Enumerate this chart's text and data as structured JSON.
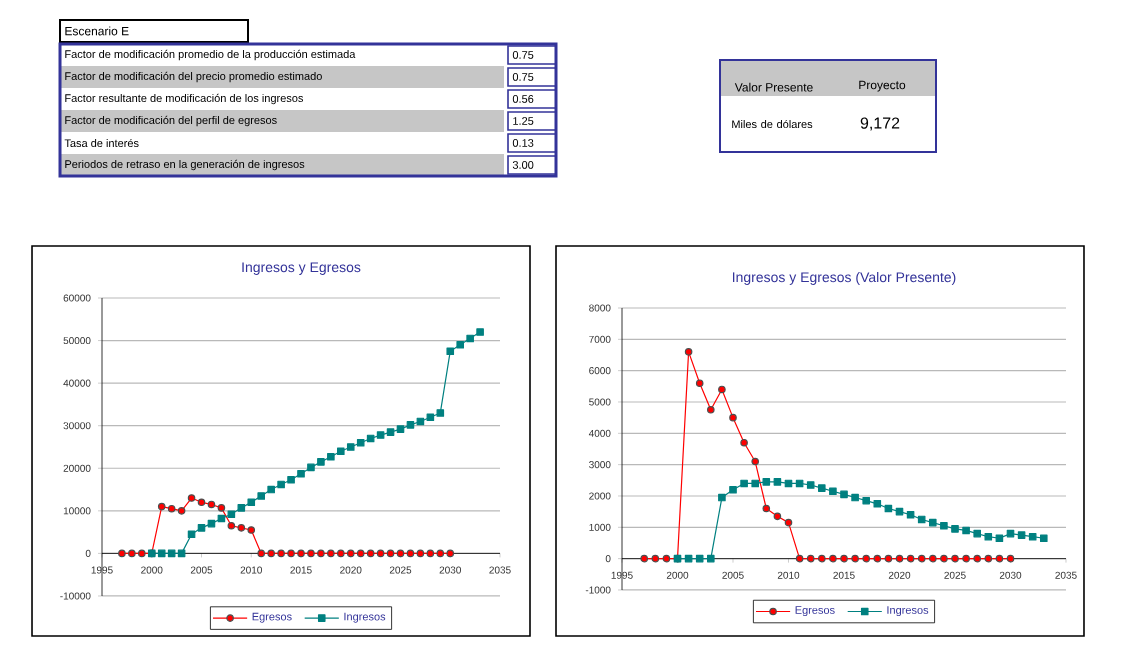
{
  "chart_data": [
    {
      "type": "other",
      "title": "Escenario E",
      "categories": [
        "Factor de modificación promedio de la producción estimada",
        "Factor de modificación del precio promedio estimado",
        "Factor resultante de modificación de los ingresos",
        "Factor de modificación del perfil de egresos",
        "Tasa de interés",
        "Periodos de retraso en la generación de ingresos"
      ],
      "value_labels": [
        "0.75",
        "0.75",
        "0.56",
        "1.25",
        "0.13",
        "3.00"
      ]
    },
    {
      "type": "other",
      "annotations": [
        "Valor Presente",
        "Proyecto"
      ],
      "categories": [
        "Miles de dólares"
      ],
      "value_labels": [
        "9,172"
      ]
    },
    {
      "type": "line",
      "title": "Ingresos y Egresos",
      "xlim": [
        1995,
        2035
      ],
      "xticks": [
        1995,
        2000,
        2005,
        2010,
        2015,
        2020,
        2025,
        2030,
        2035
      ],
      "ylim": [
        -10000,
        60000
      ],
      "yticks": [
        -10000,
        0,
        10000,
        20000,
        30000,
        40000,
        50000,
        60000
      ],
      "grid": "y",
      "legend": "bottom",
      "series": [
        {
          "name": "Egresos",
          "color": "#ff0000",
          "marker": "circle",
          "x": [
            1997,
            1998,
            1999,
            2000,
            2001,
            2002,
            2003,
            2004,
            2005,
            2006,
            2007,
            2008,
            2009,
            2010,
            2011,
            2012,
            2013,
            2014,
            2015,
            2016,
            2017,
            2018,
            2019,
            2020,
            2021,
            2022,
            2023,
            2024,
            2025,
            2026,
            2027,
            2028,
            2029,
            2030
          ],
          "values": [
            0,
            0,
            0,
            0,
            11000,
            10500,
            10000,
            13000,
            12000,
            11500,
            10700,
            6500,
            6000,
            5500,
            0,
            0,
            0,
            0,
            0,
            0,
            0,
            0,
            0,
            0,
            0,
            0,
            0,
            0,
            0,
            0,
            0,
            0,
            0,
            0
          ]
        },
        {
          "name": "Ingresos",
          "color": "#008080",
          "marker": "square",
          "x": [
            2000,
            2001,
            2002,
            2003,
            2004,
            2005,
            2006,
            2007,
            2008,
            2009,
            2010,
            2011,
            2012,
            2013,
            2014,
            2015,
            2016,
            2017,
            2018,
            2019,
            2020,
            2021,
            2022,
            2023,
            2024,
            2025,
            2026,
            2027,
            2028,
            2029,
            2030,
            2031,
            2032,
            2033
          ],
          "values": [
            0,
            0,
            0,
            0,
            4500,
            6000,
            7000,
            8200,
            9200,
            10700,
            12000,
            13500,
            15000,
            16200,
            17300,
            18700,
            20200,
            21500,
            22700,
            24000,
            25000,
            26000,
            27000,
            27800,
            28500,
            29200,
            30200,
            31000,
            32000,
            33000,
            47500,
            49000,
            50500,
            52000
          ]
        }
      ]
    },
    {
      "type": "line",
      "title": "Ingresos y Egresos (Valor Presente)",
      "xlim": [
        1995,
        2035
      ],
      "xticks": [
        1995,
        2000,
        2005,
        2010,
        2015,
        2020,
        2025,
        2030,
        2035
      ],
      "ylim": [
        -1000,
        8000
      ],
      "yticks": [
        -1000,
        0,
        1000,
        2000,
        3000,
        4000,
        5000,
        6000,
        7000,
        8000
      ],
      "grid": "y",
      "legend": "bottom",
      "series": [
        {
          "name": "Egresos",
          "color": "#ff0000",
          "marker": "circle",
          "x": [
            1997,
            1998,
            1999,
            2000,
            2001,
            2002,
            2003,
            2004,
            2005,
            2006,
            2007,
            2008,
            2009,
            2010,
            2011,
            2012,
            2013,
            2014,
            2015,
            2016,
            2017,
            2018,
            2019,
            2020,
            2021,
            2022,
            2023,
            2024,
            2025,
            2026,
            2027,
            2028,
            2029,
            2030
          ],
          "values": [
            0,
            0,
            0,
            0,
            6600,
            5600,
            4750,
            5400,
            4500,
            3700,
            3100,
            1600,
            1350,
            1150,
            0,
            0,
            0,
            0,
            0,
            0,
            0,
            0,
            0,
            0,
            0,
            0,
            0,
            0,
            0,
            0,
            0,
            0,
            0,
            0
          ]
        },
        {
          "name": "Ingresos",
          "color": "#008080",
          "marker": "square",
          "x": [
            2000,
            2001,
            2002,
            2003,
            2004,
            2005,
            2006,
            2007,
            2008,
            2009,
            2010,
            2011,
            2012,
            2013,
            2014,
            2015,
            2016,
            2017,
            2018,
            2019,
            2020,
            2021,
            2022,
            2023,
            2024,
            2025,
            2026,
            2027,
            2028,
            2029,
            2030,
            2031,
            2032,
            2033
          ],
          "values": [
            0,
            0,
            0,
            0,
            1950,
            2200,
            2400,
            2400,
            2450,
            2450,
            2400,
            2400,
            2350,
            2250,
            2150,
            2050,
            1950,
            1850,
            1750,
            1600,
            1500,
            1400,
            1250,
            1150,
            1050,
            950,
            900,
            800,
            700,
            650,
            800,
            750,
            700,
            650
          ]
        }
      ]
    }
  ]
}
